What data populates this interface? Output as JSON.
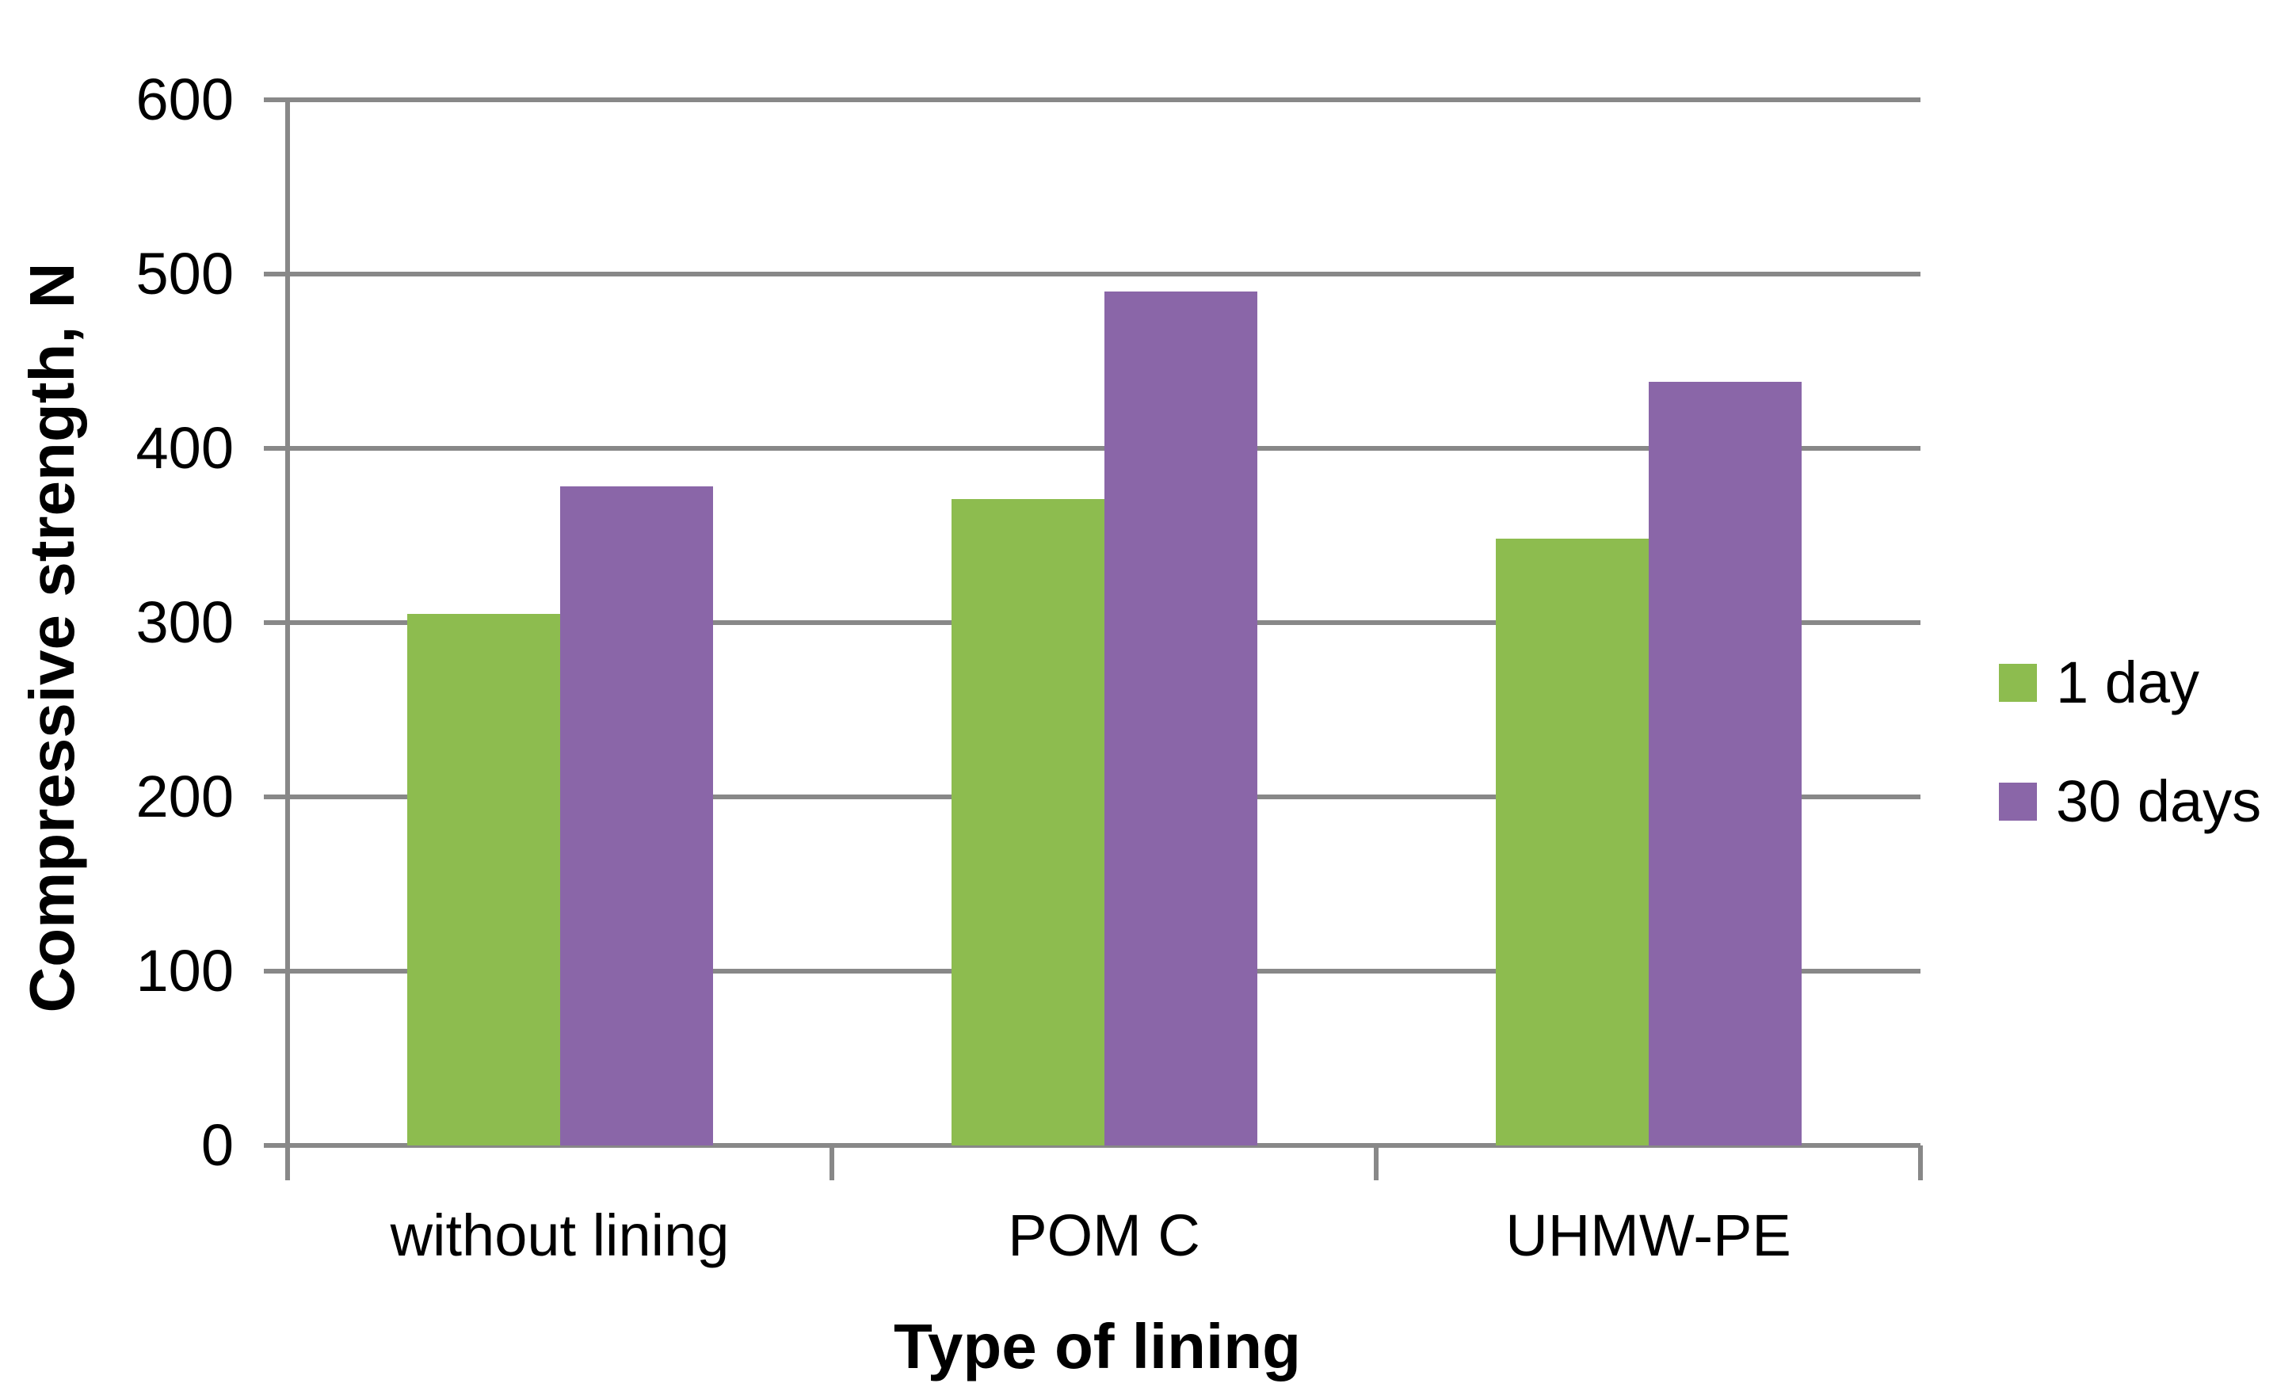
{
  "chart_data": {
    "type": "bar",
    "title": "",
    "categories": [
      "without lining",
      "POM C",
      "UHMW-PE"
    ],
    "series": [
      {
        "name": "1 day",
        "color": "#8DBC4F",
        "values": [
          305,
          371,
          348
        ]
      },
      {
        "name": "30 days",
        "color": "#8A66A8",
        "values": [
          378,
          490,
          438
        ]
      }
    ],
    "xlabel": "Type of lining",
    "ylabel": "Compressive strength, N",
    "ylim": [
      0,
      600
    ],
    "yticks": [
      0,
      100,
      200,
      300,
      400,
      500,
      600
    ],
    "grid": "horizontal gridlines on",
    "legend_position": "right",
    "gridline_color": "#888888",
    "text_color": "#000000",
    "background_color": "#FFFFFF"
  }
}
